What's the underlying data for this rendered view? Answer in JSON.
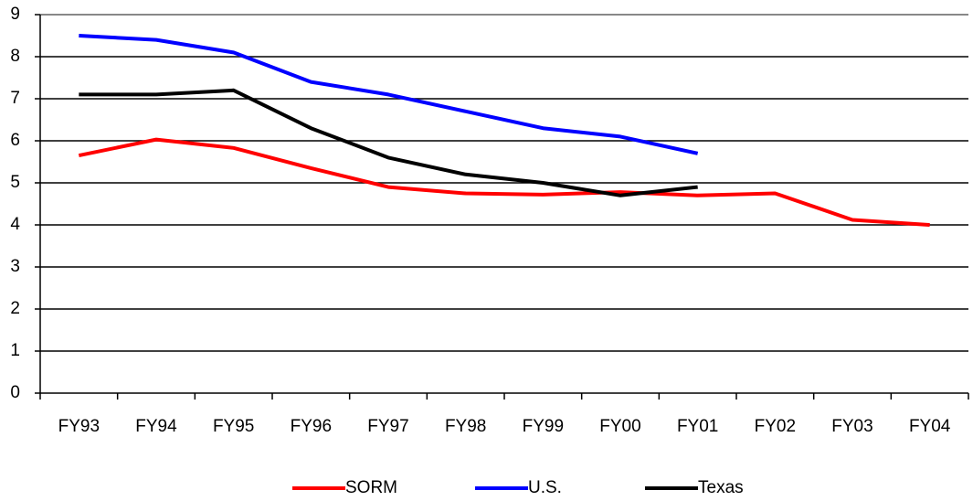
{
  "chart_data": {
    "type": "line",
    "categories": [
      "FY93",
      "FY94",
      "FY95",
      "FY96",
      "FY97",
      "FY98",
      "FY99",
      "FY00",
      "FY01",
      "FY02",
      "FY03",
      "FY04"
    ],
    "series": [
      {
        "name": "SORM",
        "color": "#ff0000",
        "values": [
          5.65,
          6.03,
          5.83,
          5.35,
          4.9,
          4.75,
          4.72,
          4.78,
          4.7,
          4.75,
          4.12,
          4.0
        ]
      },
      {
        "name": "U.S.",
        "color": "#0000ff",
        "values": [
          8.5,
          8.4,
          8.1,
          7.4,
          7.1,
          6.7,
          6.3,
          6.1,
          5.7,
          null,
          null,
          null
        ]
      },
      {
        "name": "Texas",
        "color": "#000000",
        "values": [
          7.1,
          7.1,
          7.2,
          6.3,
          5.6,
          5.2,
          5.0,
          4.7,
          4.9,
          null,
          null,
          null
        ]
      }
    ],
    "ylim": [
      0,
      9
    ],
    "yticks": [
      0,
      1,
      2,
      3,
      4,
      5,
      6,
      7,
      8,
      9
    ],
    "grid": true,
    "legend": "bottom"
  }
}
